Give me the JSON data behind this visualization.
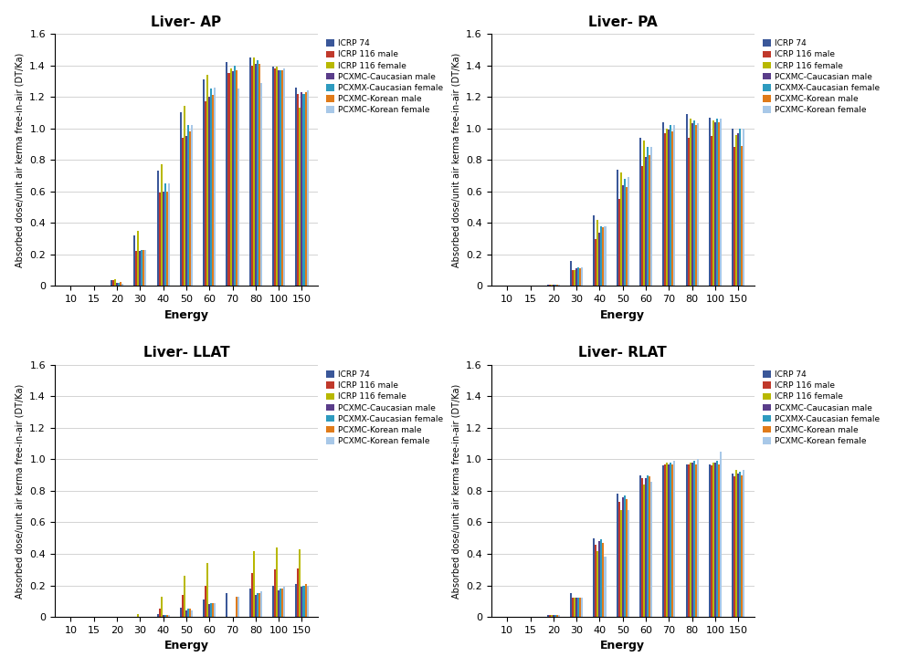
{
  "titles": [
    "Liver- AP",
    "Liver- PA",
    "Liver- LLAT",
    "Liver- RLAT"
  ],
  "xlabel": "Energy",
  "ylabel": "Absorbed dose/unit air kerma free-in-air (DT/Ka)",
  "energies": [
    10,
    15,
    20,
    30,
    40,
    50,
    60,
    70,
    80,
    100,
    150
  ],
  "series_labels": [
    "ICRP 74",
    "ICRP 116 male",
    "ICRP 116 female",
    "PCXMC-Caucasian male",
    "PCXMX-Caucasian female",
    "PCXMC-Korean male",
    "PCXMC-Korean female"
  ],
  "bar_colors": [
    "#3a5799",
    "#c0392b",
    "#b8b800",
    "#5a3d8a",
    "#2e9bbf",
    "#e07b1a",
    "#a8c8e8"
  ],
  "ylim": [
    0,
    1.6
  ],
  "yticks": [
    0,
    0.2,
    0.4,
    0.6,
    0.8,
    1.0,
    1.2,
    1.4,
    1.6
  ],
  "AP": {
    "ICRP 74": [
      0,
      0,
      0.035,
      0.32,
      0.73,
      1.1,
      1.31,
      1.42,
      1.45,
      1.39,
      1.26
    ],
    "ICRP 116 male": [
      0,
      0,
      0.035,
      0.22,
      0.59,
      0.94,
      1.17,
      1.35,
      1.4,
      1.38,
      1.22
    ],
    "ICRP 116 female": [
      0,
      0,
      0.04,
      0.35,
      0.77,
      1.14,
      1.34,
      1.38,
      1.45,
      1.39,
      1.13
    ],
    "PCXMC-Caucasian male": [
      0,
      0,
      0.02,
      0.22,
      0.6,
      0.95,
      1.2,
      1.36,
      1.41,
      1.37,
      1.23
    ],
    "PCXMX-Caucasian female": [
      0,
      0,
      0.02,
      0.23,
      0.65,
      1.02,
      1.25,
      1.4,
      1.43,
      1.37,
      1.22
    ],
    "PCXMC-Korean male": [
      0,
      0,
      0.025,
      0.23,
      0.6,
      0.98,
      1.21,
      1.37,
      1.41,
      1.37,
      1.23
    ],
    "PCXMC-Korean female": [
      0,
      0,
      0.015,
      0.23,
      0.65,
      1.02,
      1.26,
      1.25,
      1.29,
      1.38,
      1.24
    ]
  },
  "PA": {
    "ICRP 74": [
      0,
      0,
      0.01,
      0.16,
      0.45,
      0.74,
      0.94,
      1.04,
      1.09,
      1.07,
      1.0
    ],
    "ICRP 116 male": [
      0,
      0,
      0.01,
      0.1,
      0.3,
      0.55,
      0.76,
      0.97,
      0.94,
      0.95,
      0.88
    ],
    "ICRP 116 female": [
      0,
      0,
      0.01,
      0.1,
      0.42,
      0.72,
      0.92,
      1.0,
      1.06,
      1.05,
      0.96
    ],
    "PCXMC-Caucasian male": [
      0,
      0,
      0.01,
      0.11,
      0.34,
      0.64,
      0.82,
      0.99,
      1.03,
      1.04,
      0.97
    ],
    "PCXMX-Caucasian female": [
      0,
      0,
      0.01,
      0.12,
      0.38,
      0.68,
      0.88,
      1.02,
      1.05,
      1.06,
      1.0
    ],
    "PCXMC-Korean male": [
      0,
      0,
      0.01,
      0.11,
      0.37,
      0.63,
      0.83,
      0.98,
      1.02,
      1.04,
      0.89
    ],
    "PCXMC-Korean female": [
      0,
      0,
      0.01,
      0.12,
      0.38,
      0.69,
      0.88,
      1.02,
      1.03,
      1.06,
      1.0
    ]
  },
  "LLAT": {
    "ICRP 74": [
      0,
      0,
      0,
      0,
      0.02,
      0.06,
      0.11,
      0.15,
      0.18,
      0.2,
      0.21
    ],
    "ICRP 116 male": [
      0,
      0,
      0,
      0,
      0.05,
      0.14,
      0.2,
      0.0,
      0.28,
      0.3,
      0.31
    ],
    "ICRP 116 female": [
      0,
      0,
      0,
      0.02,
      0.13,
      0.26,
      0.34,
      0.0,
      0.42,
      0.44,
      0.43
    ],
    "PCXMC-Caucasian male": [
      0,
      0,
      0,
      0,
      0.01,
      0.04,
      0.08,
      0.0,
      0.14,
      0.17,
      0.19
    ],
    "PCXMX-Caucasian female": [
      0,
      0,
      0,
      0,
      0.01,
      0.05,
      0.09,
      0.0,
      0.15,
      0.18,
      0.2
    ],
    "PCXMC-Korean male": [
      0,
      0,
      0,
      0,
      0.01,
      0.05,
      0.09,
      0.13,
      0.15,
      0.18,
      0.21
    ],
    "PCXMC-Korean female": [
      0,
      0,
      0,
      0,
      0.01,
      0.04,
      0.09,
      0.13,
      0.16,
      0.19,
      0.2
    ]
  },
  "RLAT": {
    "ICRP 74": [
      0,
      0,
      0.01,
      0.15,
      0.5,
      0.78,
      0.9,
      0.96,
      0.97,
      0.97,
      0.91
    ],
    "ICRP 116 male": [
      0,
      0,
      0.01,
      0.12,
      0.46,
      0.73,
      0.88,
      0.97,
      0.97,
      0.96,
      0.89
    ],
    "ICRP 116 female": [
      0,
      0,
      0.01,
      0.12,
      0.42,
      0.68,
      0.84,
      0.98,
      0.98,
      0.98,
      0.93
    ],
    "PCXMC-Caucasian male": [
      0,
      0,
      0.01,
      0.12,
      0.48,
      0.76,
      0.88,
      0.97,
      0.98,
      0.98,
      0.91
    ],
    "PCXMX-Caucasian female": [
      0,
      0,
      0.01,
      0.12,
      0.49,
      0.77,
      0.9,
      0.98,
      0.99,
      0.99,
      0.92
    ],
    "PCXMC-Korean male": [
      0,
      0,
      0.01,
      0.12,
      0.47,
      0.75,
      0.89,
      0.97,
      0.97,
      0.97,
      0.9
    ],
    "PCXMC-Korean female": [
      0,
      0,
      0.01,
      0.12,
      0.38,
      0.68,
      0.86,
      0.99,
      1.0,
      1.05,
      0.93
    ]
  }
}
